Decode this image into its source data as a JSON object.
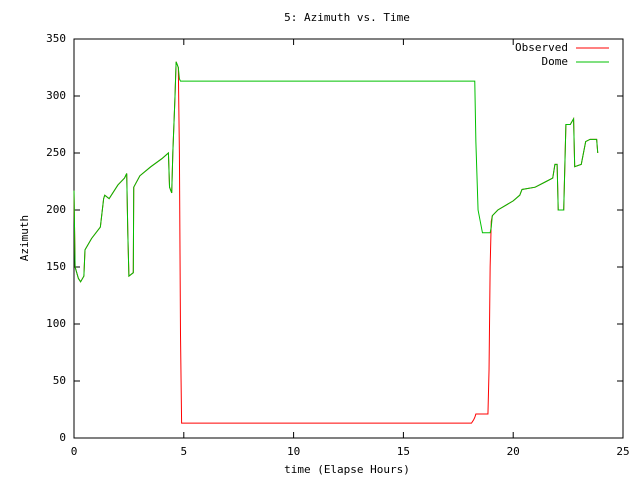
{
  "chart_data": {
    "type": "line",
    "title": "5: Azimuth vs. Time",
    "x_label": "time (Elapse Hours)",
    "y_label": "Azimuth",
    "x": [
      0,
      0.05,
      0.2,
      0.3,
      0.45,
      0.5,
      0.8,
      1.2,
      1.35,
      1.4,
      1.6,
      2.0,
      2.3,
      2.4,
      2.45,
      2.5,
      2.7,
      2.72,
      3.0,
      3.5,
      4.0,
      4.3,
      4.35,
      4.45,
      4.5,
      4.6,
      4.65,
      4.75,
      4.8,
      4.85,
      4.9,
      18.1,
      18.2,
      18.25,
      18.3,
      18.4,
      18.6,
      18.85,
      18.9,
      18.95,
      19.0,
      19.05,
      19.3,
      20.0,
      20.3,
      20.4,
      21.0,
      21.5,
      21.8,
      21.9,
      22.0,
      22.05,
      22.3,
      22.4,
      22.6,
      22.75,
      22.8,
      23.1,
      23.3,
      23.5,
      23.8,
      23.85
    ],
    "series": [
      {
        "name": "Observed",
        "color": "#ff0000",
        "values": [
          217,
          150,
          140,
          137,
          142,
          165,
          175,
          185,
          210,
          213,
          210,
          222,
          228,
          232,
          180,
          142,
          145,
          220,
          230,
          238,
          245,
          250,
          220,
          215,
          250,
          300,
          330,
          325,
          250,
          90,
          13,
          13,
          16,
          18,
          21,
          21,
          21,
          21,
          60,
          150,
          190,
          195,
          200,
          208,
          213,
          218,
          220,
          225,
          228,
          240,
          240,
          200,
          200,
          275,
          275,
          280,
          238,
          240,
          260,
          262,
          262,
          250
        ]
      },
      {
        "name": "Dome",
        "color": "#00c000",
        "values": [
          217,
          150,
          140,
          137,
          142,
          165,
          175,
          185,
          210,
          213,
          210,
          222,
          228,
          232,
          180,
          142,
          145,
          220,
          230,
          238,
          245,
          250,
          220,
          215,
          250,
          300,
          330,
          325,
          315,
          313,
          313,
          313,
          313,
          313,
          260,
          200,
          180,
          180,
          180,
          180,
          185,
          195,
          200,
          208,
          213,
          218,
          220,
          225,
          228,
          240,
          240,
          200,
          200,
          275,
          275,
          280,
          238,
          240,
          260,
          262,
          262,
          250
        ]
      }
    ],
    "xlim": [
      0,
      25
    ],
    "xticks": [
      0,
      5,
      10,
      15,
      20,
      25
    ],
    "ylim": [
      0,
      350
    ],
    "yticks": [
      0,
      50,
      100,
      150,
      200,
      250,
      300,
      350
    ],
    "legend": "top-right"
  }
}
